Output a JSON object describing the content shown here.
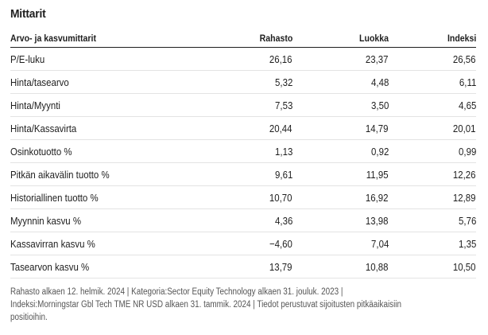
{
  "section": {
    "title": "Mittarit"
  },
  "table": {
    "headers": [
      "Arvo- ja kasvumittarit",
      "Rahasto",
      "Luokka",
      "Indeksi"
    ],
    "rows": [
      {
        "label": "P/E-luku",
        "values": [
          "26,16",
          "23,37",
          "26,56"
        ]
      },
      {
        "label": "Hinta/tasearvo",
        "values": [
          "5,32",
          "4,48",
          "6,11"
        ]
      },
      {
        "label": "Hinta/Myynti",
        "values": [
          "7,53",
          "3,50",
          "4,65"
        ]
      },
      {
        "label": "Hinta/Kassavirta",
        "values": [
          "20,44",
          "14,79",
          "20,01"
        ]
      },
      {
        "label": "Osinkotuotto %",
        "values": [
          "1,13",
          "0,92",
          "0,99"
        ]
      },
      {
        "label": "Pitkän aikavälin tuotto %",
        "values": [
          "9,61",
          "11,95",
          "12,26"
        ]
      },
      {
        "label": "Historiallinen tuotto %",
        "values": [
          "10,70",
          "16,92",
          "12,89"
        ]
      },
      {
        "label": "Myynnin kasvu %",
        "values": [
          "4,36",
          "13,98",
          "5,76"
        ]
      },
      {
        "label": "Kassavirran kasvu %",
        "values": [
          "−4,60",
          "7,04",
          "1,35"
        ]
      },
      {
        "label": "Tasearvon kasvu %",
        "values": [
          "13,79",
          "10,88",
          "10,50"
        ]
      }
    ]
  },
  "footnote": {
    "lines": [
      "Rahasto alkaen 12. helmik. 2024 | Kategoria:Sector Equity Technology alkaen 31. jouluk. 2023 |",
      "Indeksi:Morningstar Gbl Tech TME NR USD alkaen 31. tammik. 2024 | Tiedot perustuvat sijoitusten pitkäaikaisiin",
      "positioihin."
    ]
  },
  "colors": {
    "text": "#1e1e1e",
    "row_divider": "#e3e3e3",
    "footnote_text": "#555555"
  }
}
